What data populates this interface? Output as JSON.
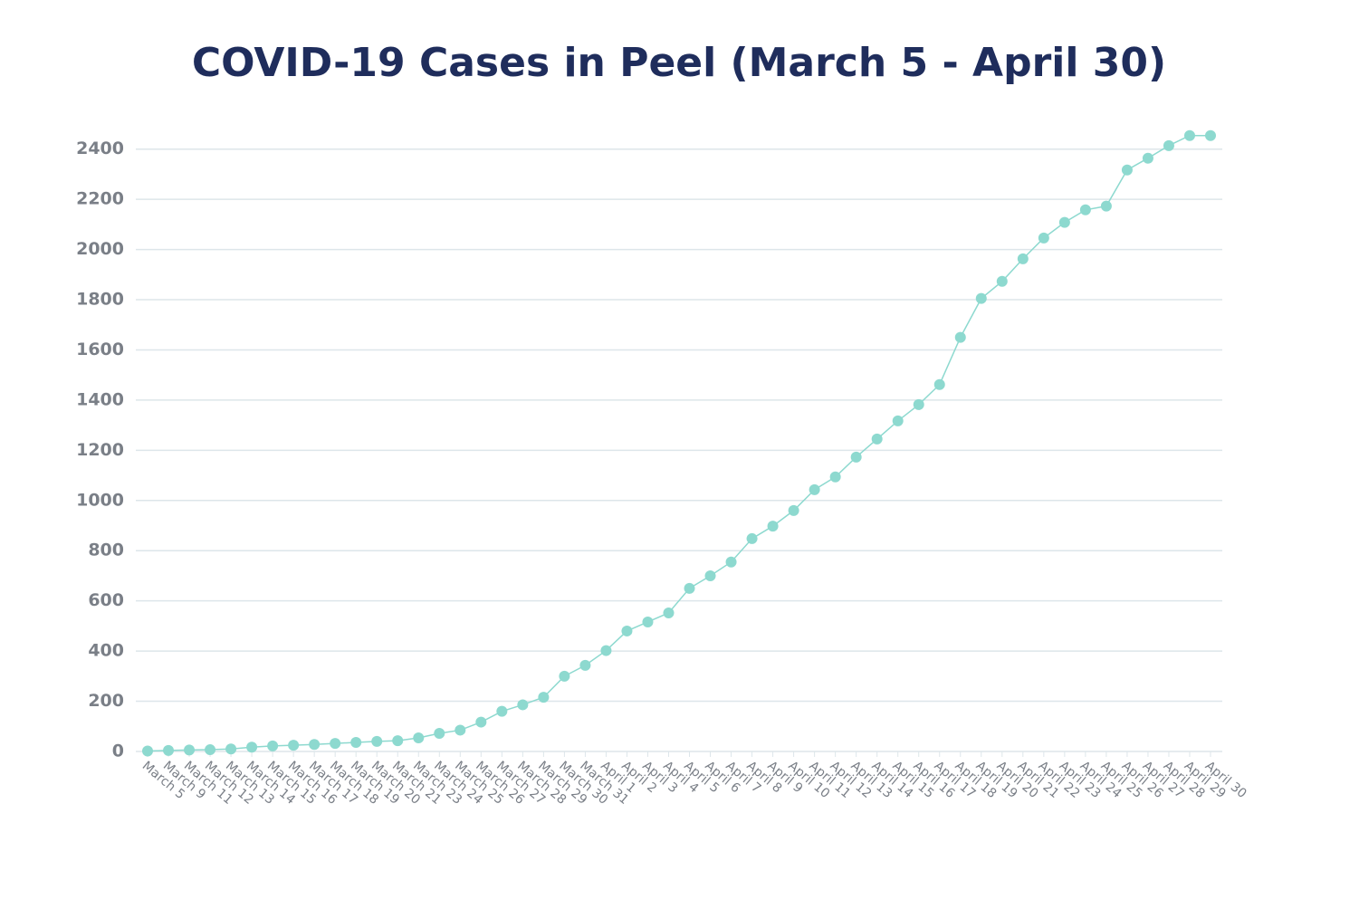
{
  "chart_data": {
    "type": "line",
    "title": "COVID-19 Cases in Peel (March 5 - April 30)",
    "categories": [
      "March 5",
      "March 9",
      "March 11",
      "March 12",
      "March 13",
      "March 14",
      "March 15",
      "March 16",
      "March 17",
      "March 18",
      "March 19",
      "March 20",
      "March 21",
      "March 23",
      "March 24",
      "March 25",
      "March 26",
      "March 27",
      "March 28",
      "March 29",
      "March 30",
      "March 31",
      "April 1",
      "April 2",
      "April 3",
      "April 4",
      "April 5",
      "April 6",
      "April 7",
      "April 8",
      "April 9",
      "April 10",
      "April 11",
      "April 12",
      "April 13",
      "April 14",
      "April 15",
      "April 16",
      "April 17",
      "April 18",
      "April 19",
      "April 20",
      "April 21",
      "April 22",
      "April 23",
      "April 24",
      "April 25",
      "April 26",
      "April 27",
      "April 28",
      "April 29",
      "April 30"
    ],
    "values": [
      2,
      4,
      6,
      7,
      10,
      17,
      22,
      25,
      28,
      32,
      36,
      40,
      43,
      54,
      72,
      85,
      117,
      160,
      186,
      216,
      300,
      343,
      402,
      480,
      516,
      552,
      650,
      700,
      755,
      848,
      898,
      960,
      1043,
      1094,
      1173,
      1245,
      1317,
      1382,
      1462,
      1650,
      1805,
      1873,
      1963,
      2046,
      2108,
      2158,
      2173,
      2317,
      2364,
      2414,
      2454,
      2454
    ],
    "color": "#8dd9cf",
    "ylim": [
      0,
      2500
    ],
    "yticks": [
      0,
      200,
      400,
      600,
      800,
      1000,
      1200,
      1400,
      1600,
      1800,
      2000,
      2200,
      2400
    ],
    "grid": true
  }
}
